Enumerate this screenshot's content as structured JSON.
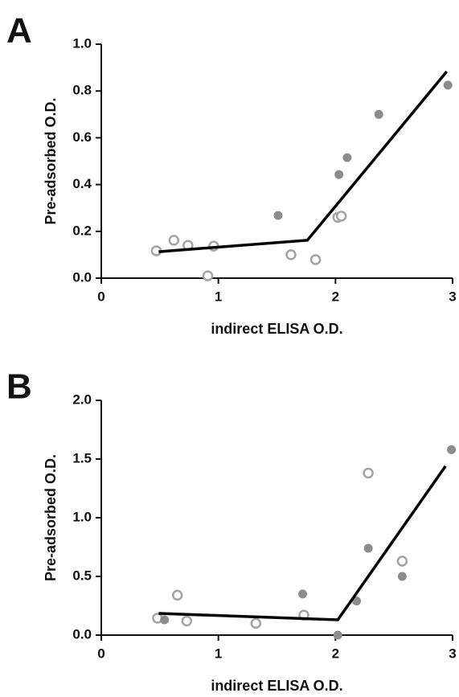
{
  "chart_data": [
    {
      "type": "scatter",
      "panel_label": "A",
      "xlabel": "indirect ELISA O.D.",
      "ylabel": "Pre-adsorbed O.D.",
      "xlim": [
        0,
        3
      ],
      "xticks": [
        0,
        1,
        2,
        3
      ],
      "ylim": [
        0,
        1
      ],
      "yticks": [
        {
          "value": 0,
          "label": "0.0"
        },
        0.2,
        0.4,
        0.6,
        0.8,
        {
          "value": 1,
          "label": "1.0"
        }
      ],
      "series": [
        {
          "style": "open",
          "color": "#a3a3a3",
          "x": [
            0.47,
            0.62,
            0.74,
            0.96,
            0.91,
            1.62,
            1.83,
            2.02,
            2.05
          ],
          "values": [
            0.117,
            0.162,
            0.14,
            0.137,
            0.01,
            0.1,
            0.079,
            0.26,
            0.265
          ]
        },
        {
          "style": "filled",
          "color": "#8c8c8c",
          "x": [
            1.51,
            2.03,
            2.1,
            2.37,
            2.96
          ],
          "values": [
            0.268,
            0.443,
            0.515,
            0.7,
            0.825
          ]
        },
        {
          "style": "line",
          "color": "#000000",
          "x": [
            0.49,
            1.76,
            2.95
          ],
          "values": [
            0.113,
            0.162,
            0.883
          ]
        }
      ]
    },
    {
      "type": "scatter",
      "panel_label": "B",
      "xlabel": "indirect ELISA O.D.",
      "ylabel": "Pre-adsorbed O.D.",
      "xlim": [
        0,
        3
      ],
      "xticks": [
        0,
        1,
        2,
        3
      ],
      "ylim": [
        0,
        2
      ],
      "yticks": [
        {
          "value": 0,
          "label": "0.0"
        },
        0.5,
        {
          "value": 1,
          "label": "1.0"
        },
        1.5,
        {
          "value": 2,
          "label": "2.0"
        }
      ],
      "series": [
        {
          "style": "open",
          "color": "#a3a3a3",
          "x": [
            0.48,
            0.65,
            0.73,
            1.32,
            1.73,
            2.28,
            2.57
          ],
          "values": [
            0.144,
            0.34,
            0.12,
            0.1,
            0.17,
            1.38,
            0.63
          ]
        },
        {
          "style": "filled",
          "color": "#8c8c8c",
          "x": [
            0.54,
            1.72,
            2.02,
            2.18,
            2.28,
            2.57,
            2.99
          ],
          "values": [
            0.13,
            0.35,
            0.0,
            0.29,
            0.74,
            0.5,
            1.58
          ]
        },
        {
          "style": "line",
          "color": "#000000",
          "x": [
            0.49,
            2.02,
            2.94
          ],
          "values": [
            0.185,
            0.13,
            1.44
          ]
        }
      ]
    }
  ]
}
